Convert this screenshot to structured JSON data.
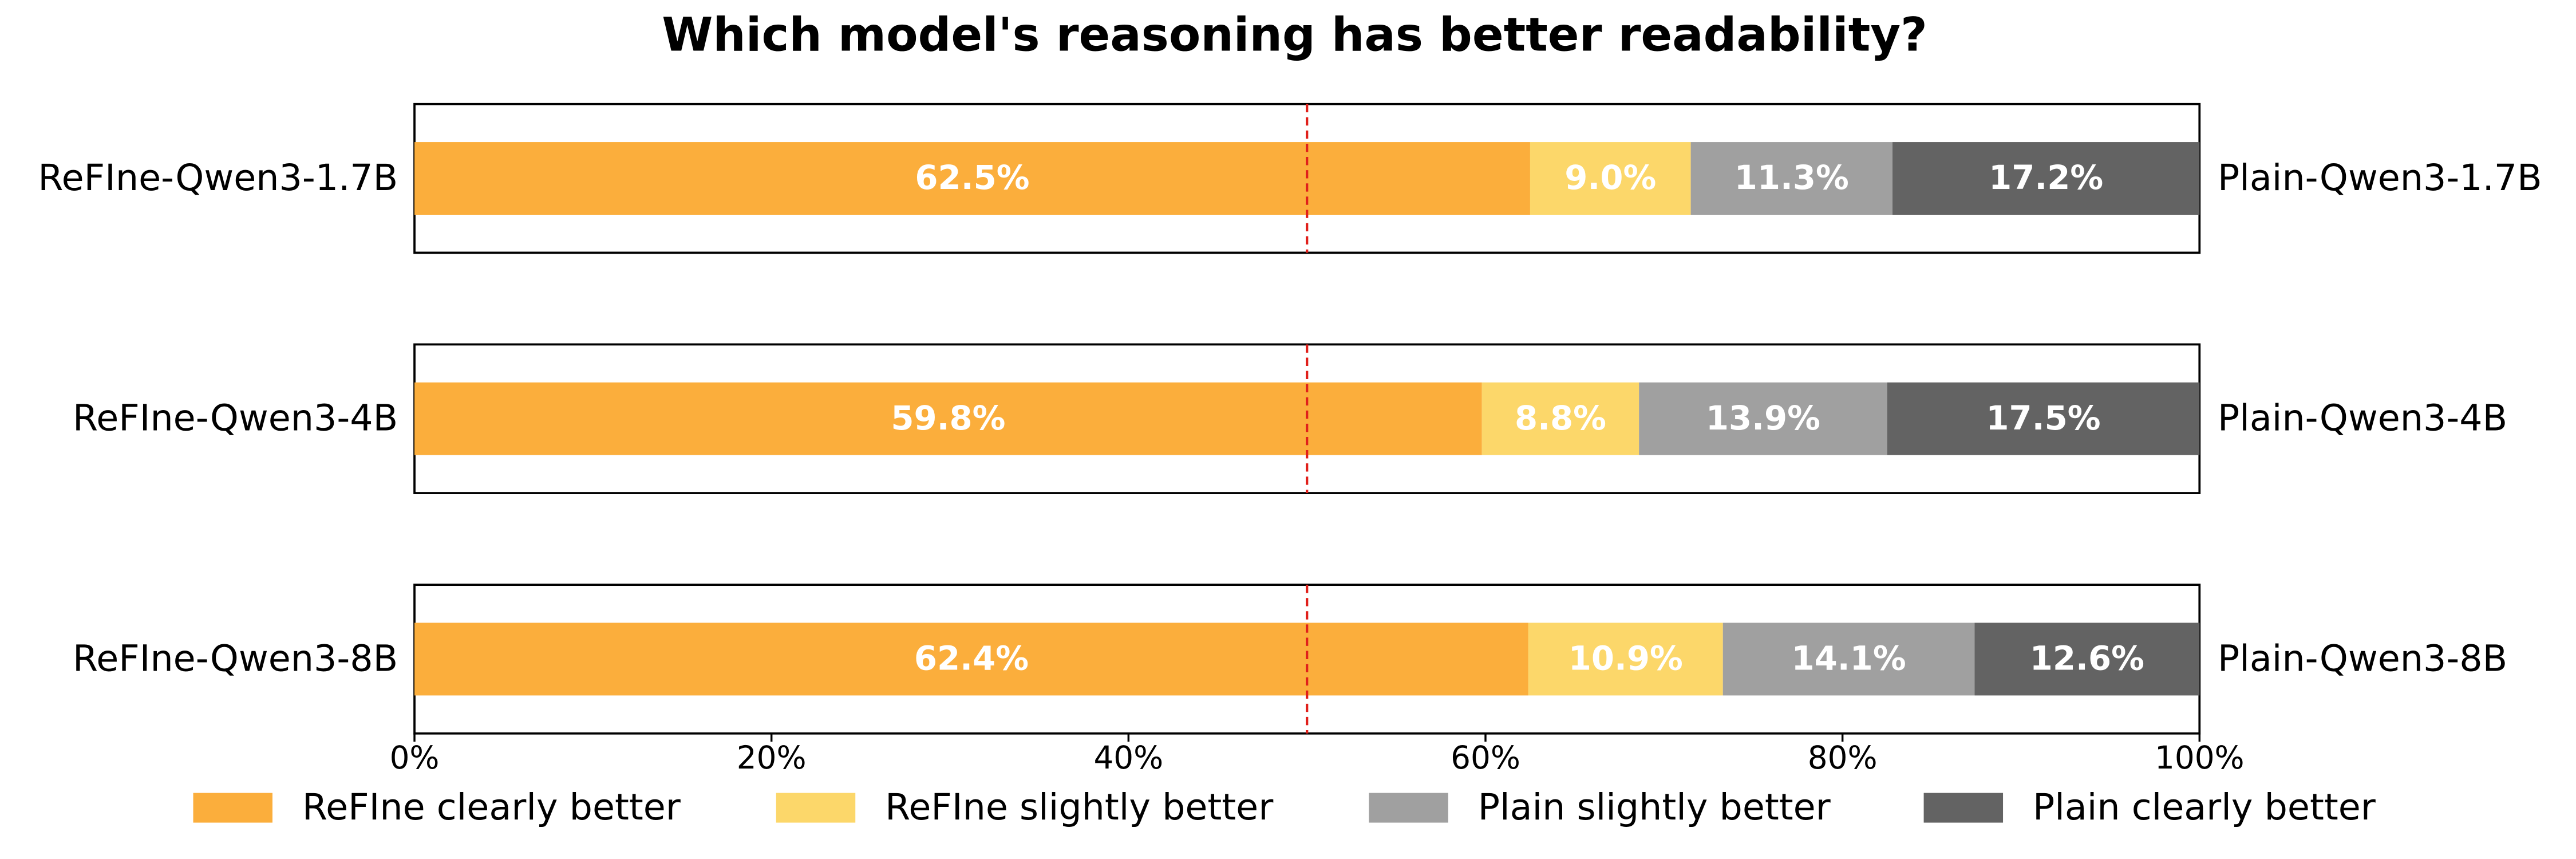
{
  "chart_data": {
    "type": "stacked-bar-h",
    "title": "Which model's reasoning has better readability?",
    "categories": [
      "ReFIne-Qwen3-1.7B",
      "ReFIne-Qwen3-4B",
      "ReFIne-Qwen3-8B"
    ],
    "right_labels": [
      "Plain-Qwen3-1.7B",
      "Plain-Qwen3-4B",
      "Plain-Qwen3-8B"
    ],
    "series": [
      {
        "name": "ReFIne clearly better",
        "color": "#fbae3c",
        "values": [
          62.5,
          59.8,
          62.4
        ],
        "value_labels": [
          "62.5%",
          "59.8%",
          "62.4%"
        ]
      },
      {
        "name": "ReFIne slightly better",
        "color": "#fcd76a",
        "values": [
          9,
          8.8,
          10.9
        ],
        "value_labels": [
          "9.0%",
          "8.8%",
          "10.9%"
        ]
      },
      {
        "name": "Plain slightly better",
        "color": "#a0a0a0",
        "values": [
          11.3,
          13.9,
          14.1
        ],
        "value_labels": [
          "11.3%",
          "13.9%",
          "14.1%"
        ]
      },
      {
        "name": "Plain clearly better",
        "color": "#636363",
        "values": [
          17.2,
          17.5,
          12.6
        ],
        "value_labels": [
          "17.2%",
          "17.5%",
          "12.6%"
        ]
      }
    ],
    "xlim": [
      0,
      100
    ],
    "xticks": [
      {
        "value": 0,
        "label": "0%"
      },
      {
        "value": 20,
        "label": "20%"
      },
      {
        "value": 40,
        "label": "40%"
      },
      {
        "value": 60,
        "label": "60%"
      },
      {
        "value": 80,
        "label": "80%"
      },
      {
        "value": 100,
        "label": "100%"
      }
    ],
    "reference_line": {
      "value": 50,
      "color": "#e0201b"
    },
    "legend": "bottom"
  }
}
